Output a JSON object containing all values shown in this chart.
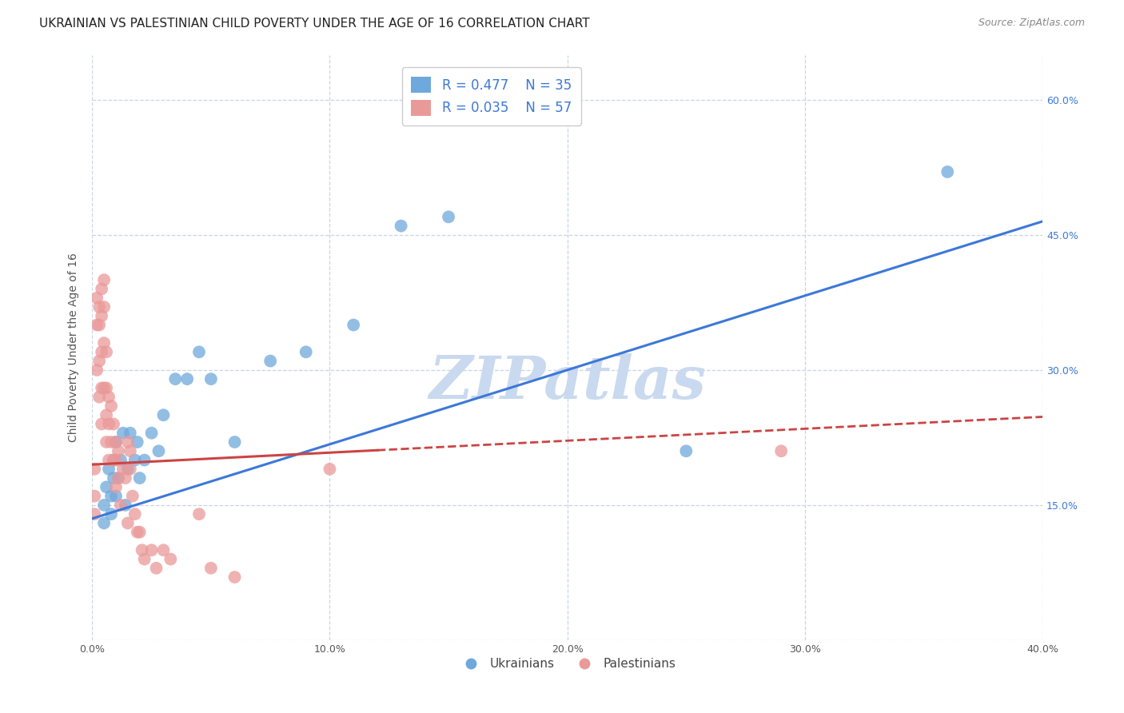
{
  "title": "UKRAINIAN VS PALESTINIAN CHILD POVERTY UNDER THE AGE OF 16 CORRELATION CHART",
  "source": "Source: ZipAtlas.com",
  "ylabel": "Child Poverty Under the Age of 16",
  "xlim": [
    0.0,
    0.4
  ],
  "ylim": [
    0.0,
    0.65
  ],
  "xticks": [
    0.0,
    0.1,
    0.2,
    0.3,
    0.4
  ],
  "yticks": [
    0.0,
    0.15,
    0.3,
    0.45,
    0.6
  ],
  "xtick_labels": [
    "0.0%",
    "10.0%",
    "20.0%",
    "30.0%",
    "40.0%"
  ],
  "ytick_labels": [
    "",
    "15.0%",
    "30.0%",
    "45.0%",
    "60.0%"
  ],
  "ukrainian_R": "0.477",
  "ukrainian_N": "35",
  "palestinian_R": "0.035",
  "palestinian_N": "57",
  "blue_color": "#6fa8dc",
  "pink_color": "#ea9999",
  "line_blue": "#3c78d8",
  "line_pink": "#cc4444",
  "watermark": "ZIPatlas",
  "watermark_color": "#c9d9ef",
  "legend_R_color": "#3c78d8",
  "background_color": "#ffffff",
  "grid_color": "#c8d4e8",
  "ukrainian_x": [
    0.005,
    0.005,
    0.006,
    0.007,
    0.008,
    0.008,
    0.009,
    0.009,
    0.01,
    0.01,
    0.011,
    0.012,
    0.013,
    0.014,
    0.015,
    0.016,
    0.018,
    0.019,
    0.02,
    0.022,
    0.025,
    0.028,
    0.03,
    0.035,
    0.04,
    0.045,
    0.05,
    0.06,
    0.075,
    0.09,
    0.11,
    0.13,
    0.15,
    0.25,
    0.36
  ],
  "ukrainian_y": [
    0.13,
    0.15,
    0.17,
    0.19,
    0.14,
    0.16,
    0.18,
    0.2,
    0.22,
    0.16,
    0.18,
    0.2,
    0.23,
    0.15,
    0.19,
    0.23,
    0.2,
    0.22,
    0.18,
    0.2,
    0.23,
    0.21,
    0.25,
    0.29,
    0.29,
    0.32,
    0.29,
    0.22,
    0.31,
    0.32,
    0.35,
    0.46,
    0.47,
    0.21,
    0.52
  ],
  "palestinian_x": [
    0.001,
    0.001,
    0.001,
    0.002,
    0.002,
    0.002,
    0.003,
    0.003,
    0.003,
    0.003,
    0.004,
    0.004,
    0.004,
    0.004,
    0.004,
    0.005,
    0.005,
    0.005,
    0.005,
    0.006,
    0.006,
    0.006,
    0.006,
    0.007,
    0.007,
    0.007,
    0.008,
    0.008,
    0.009,
    0.009,
    0.01,
    0.01,
    0.01,
    0.011,
    0.011,
    0.012,
    0.013,
    0.014,
    0.015,
    0.015,
    0.016,
    0.016,
    0.017,
    0.018,
    0.019,
    0.02,
    0.021,
    0.022,
    0.025,
    0.027,
    0.03,
    0.033,
    0.045,
    0.05,
    0.06,
    0.1,
    0.29
  ],
  "palestinian_y": [
    0.19,
    0.16,
    0.14,
    0.38,
    0.35,
    0.3,
    0.37,
    0.35,
    0.31,
    0.27,
    0.39,
    0.36,
    0.32,
    0.28,
    0.24,
    0.4,
    0.37,
    0.33,
    0.28,
    0.32,
    0.28,
    0.25,
    0.22,
    0.27,
    0.24,
    0.2,
    0.26,
    0.22,
    0.24,
    0.2,
    0.22,
    0.2,
    0.17,
    0.21,
    0.18,
    0.15,
    0.19,
    0.18,
    0.22,
    0.13,
    0.21,
    0.19,
    0.16,
    0.14,
    0.12,
    0.12,
    0.1,
    0.09,
    0.1,
    0.08,
    0.1,
    0.09,
    0.14,
    0.08,
    0.07,
    0.19,
    0.21
  ],
  "blue_line_x0": 0.0,
  "blue_line_y0": 0.135,
  "blue_line_x1": 0.4,
  "blue_line_y1": 0.465,
  "pink_line_x0": 0.0,
  "pink_line_y0": 0.195,
  "pink_line_x1": 0.4,
  "pink_line_y1": 0.248
}
